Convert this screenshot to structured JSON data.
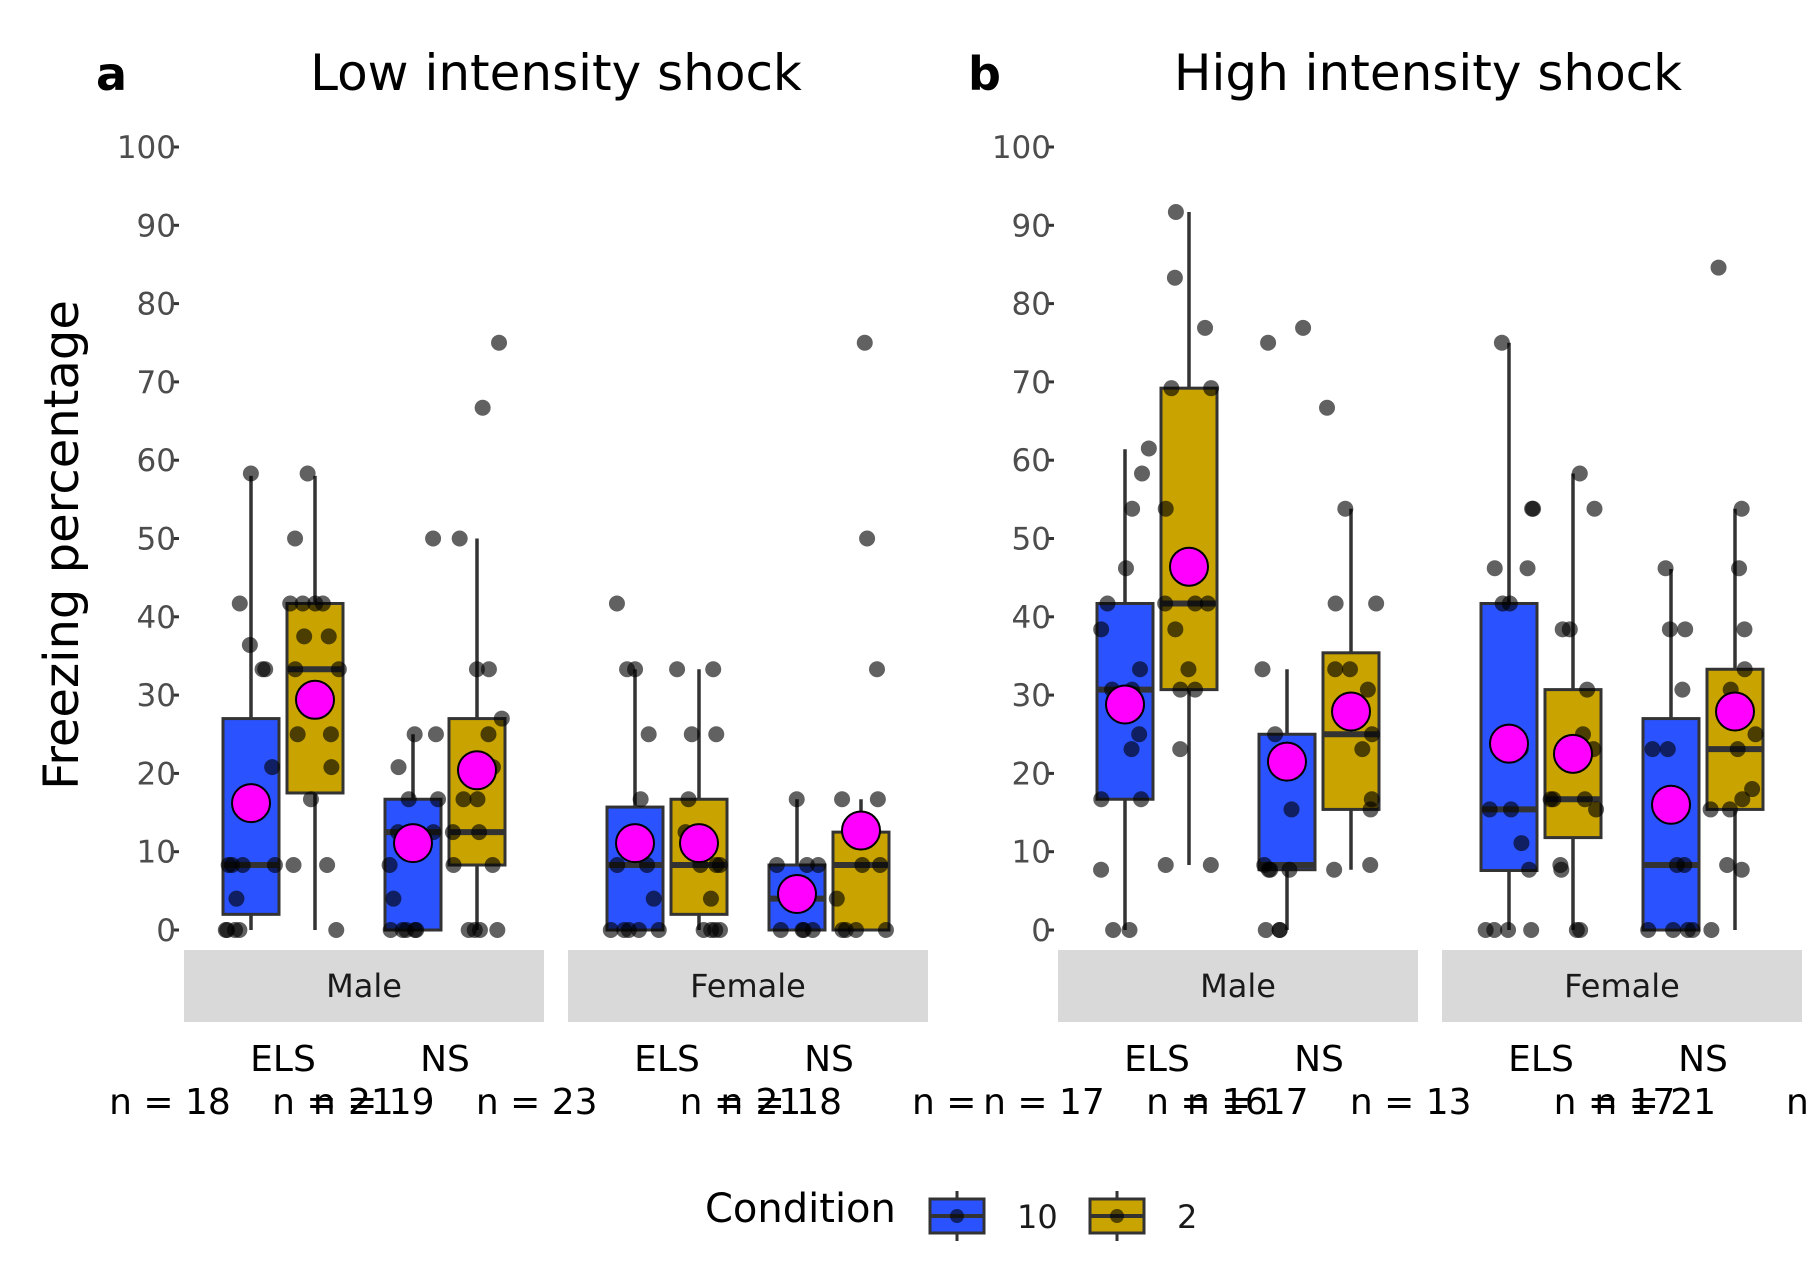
{
  "chart_data": [
    {
      "type": "box",
      "panel_letter": "a",
      "title": "Low intensity shock",
      "ylabel": "Freezing percentage",
      "ylim": [
        0,
        100
      ],
      "yticks": [
        0,
        10,
        20,
        30,
        40,
        50,
        60,
        70,
        80,
        90,
        100
      ],
      "facets": [
        "Male",
        "Female"
      ],
      "categories": [
        "ELS",
        "NS"
      ],
      "groups": [
        {
          "facet": "Male",
          "category": "ELS",
          "condition": "10",
          "min": 0,
          "q1": 2,
          "median": 8.3,
          "q3": 27,
          "max": 58,
          "mean": 16.2,
          "points": [
            0,
            0,
            0,
            0,
            4,
            8.3,
            8.3,
            8.3,
            8.3,
            20.8,
            33.3,
            33.3,
            36.4,
            41.7,
            58.3
          ]
        },
        {
          "facet": "Male",
          "category": "ELS",
          "condition": "2",
          "min": 0,
          "q1": 17.5,
          "median": 33.3,
          "q3": 41.7,
          "max": 58,
          "mean": 29.4,
          "points": [
            0,
            8.3,
            8.3,
            16.7,
            20.8,
            25,
            25,
            33.3,
            33.3,
            37.5,
            37.5,
            41.7,
            41.7,
            41.7,
            41.7,
            50,
            58.3
          ]
        },
        {
          "facet": "Male",
          "category": "NS",
          "condition": "10",
          "min": 0,
          "q1": 0,
          "median": 12.5,
          "q3": 16.7,
          "max": 25,
          "mean": 11.1,
          "points": [
            0,
            0,
            0,
            0,
            0,
            4,
            8.3,
            12.5,
            12.5,
            16.7,
            16.7,
            20.8,
            25,
            25,
            50
          ]
        },
        {
          "facet": "Male",
          "category": "NS",
          "condition": "2",
          "min": 0,
          "q1": 8.3,
          "median": 12.5,
          "q3": 27,
          "max": 50,
          "mean": 20.4,
          "points": [
            0,
            0,
            0,
            0,
            8.3,
            8.3,
            12.5,
            12.5,
            16.7,
            16.7,
            20.8,
            25,
            27,
            33.3,
            33.3,
            50,
            66.7,
            75
          ]
        },
        {
          "facet": "Female",
          "category": "ELS",
          "condition": "10",
          "min": 0,
          "q1": 0,
          "median": 8.3,
          "q3": 15.7,
          "max": 33.3,
          "mean": 11.1,
          "points": [
            0,
            0,
            0,
            0,
            0,
            4,
            8.3,
            8.3,
            16.7,
            25,
            33.3,
            33.3,
            41.7
          ]
        },
        {
          "facet": "Female",
          "category": "ELS",
          "condition": "2",
          "min": 0,
          "q1": 2,
          "median": 8.3,
          "q3": 16.7,
          "max": 33.3,
          "mean": 11.1,
          "points": [
            0,
            0,
            0,
            0,
            4,
            8.3,
            8.3,
            8.3,
            12.5,
            16.7,
            25,
            25,
            33.3,
            33.3
          ]
        },
        {
          "facet": "Female",
          "category": "NS",
          "condition": "10",
          "min": 0,
          "q1": 0,
          "median": 4,
          "q3": 8.3,
          "max": 16.7,
          "mean": 4.6,
          "points": [
            0,
            0,
            0,
            0,
            4,
            8.3,
            8.3,
            8.3,
            16.7
          ]
        },
        {
          "facet": "Female",
          "category": "NS",
          "condition": "2",
          "min": 0,
          "q1": 0,
          "median": 8.3,
          "q3": 12.5,
          "max": 16.7,
          "mean": 12.7,
          "points": [
            0,
            0,
            0,
            0,
            4,
            8.3,
            8.3,
            12.5,
            16.7,
            16.7,
            33.3,
            50,
            75
          ]
        }
      ],
      "n_labels": [
        {
          "text": "n = 18",
          "xunit": 0.0
        },
        {
          "text": "n = 21",
          "xunit": 1.0
        },
        {
          "text": "n = 19",
          "xunit": 1.25
        },
        {
          "text": "n = 23",
          "xunit": 2.25
        },
        {
          "text": "n = 21",
          "xunit": 3.5
        },
        {
          "text": "n = 18",
          "xunit": 3.75
        },
        {
          "text": "n =",
          "xunit": 4.75
        }
      ]
    },
    {
      "type": "box",
      "panel_letter": "b",
      "title": "High intensity shock",
      "ylim": [
        0,
        100
      ],
      "yticks": [
        0,
        10,
        20,
        30,
        40,
        50,
        60,
        70,
        80,
        90,
        100
      ],
      "facets": [
        "Male",
        "Female"
      ],
      "categories": [
        "ELS",
        "NS"
      ],
      "groups": [
        {
          "facet": "Male",
          "category": "ELS",
          "condition": "10",
          "min": 0,
          "q1": 16.7,
          "median": 30.7,
          "q3": 41.7,
          "max": 61.4,
          "mean": 28.8,
          "points": [
            0,
            0,
            7.7,
            16.7,
            16.7,
            23.1,
            25,
            30.7,
            30.7,
            33.3,
            38.4,
            41.7,
            46.2,
            53.8,
            58.3,
            61.5
          ]
        },
        {
          "facet": "Male",
          "category": "ELS",
          "condition": "2",
          "min": 8.3,
          "q1": 30.7,
          "median": 41.7,
          "q3": 69.2,
          "max": 91.7,
          "mean": 46.4,
          "points": [
            8.3,
            8.3,
            23.1,
            30.7,
            30.7,
            33.3,
            38.4,
            41.7,
            41.7,
            41.7,
            53.8,
            69.2,
            69.2,
            76.9,
            83.3,
            91.7
          ]
        },
        {
          "facet": "Male",
          "category": "NS",
          "condition": "10",
          "min": 0,
          "q1": 7.7,
          "median": 8.3,
          "q3": 25,
          "max": 33.3,
          "mean": 21.5,
          "points": [
            0,
            0,
            0,
            7.7,
            7.7,
            7.7,
            8.3,
            15.4,
            25,
            33.3,
            75,
            76.9
          ]
        },
        {
          "facet": "Male",
          "category": "NS",
          "condition": "2",
          "min": 7.7,
          "q1": 15.4,
          "median": 25,
          "q3": 35.4,
          "max": 53.8,
          "mean": 27.9,
          "points": [
            7.7,
            8.3,
            15.4,
            16.7,
            23.1,
            25,
            30.7,
            33.3,
            33.3,
            41.7,
            41.7,
            53.8,
            66.7
          ]
        },
        {
          "facet": "Female",
          "category": "ELS",
          "condition": "10",
          "min": 0,
          "q1": 7.6,
          "median": 15.4,
          "q3": 41.7,
          "max": 75,
          "mean": 23.8,
          "points": [
            0,
            0,
            0,
            0,
            7.7,
            11.1,
            15.4,
            15.4,
            23.1,
            41.7,
            41.7,
            46.2,
            46.2,
            53.8,
            53.8,
            75
          ]
        },
        {
          "facet": "Female",
          "category": "ELS",
          "condition": "2",
          "min": 0,
          "q1": 11.8,
          "median": 16.7,
          "q3": 30.7,
          "max": 58.3,
          "mean": 22.5,
          "points": [
            0,
            0,
            7.7,
            8.3,
            15.4,
            16.7,
            16.7,
            16.7,
            23.1,
            25,
            30.7,
            38.4,
            38.4,
            53.8,
            58.3
          ]
        },
        {
          "facet": "Female",
          "category": "NS",
          "condition": "10",
          "min": 0,
          "q1": 0,
          "median": 8.3,
          "q3": 27,
          "max": 46.1,
          "mean": 16.0,
          "points": [
            0,
            0,
            0,
            0,
            8.3,
            8.3,
            15.4,
            23.1,
            23.1,
            30.7,
            38.4,
            38.4,
            46.2
          ]
        },
        {
          "facet": "Female",
          "category": "NS",
          "condition": "2",
          "min": 0,
          "q1": 15.4,
          "median": 23.1,
          "q3": 33.3,
          "max": 53.8,
          "mean": 27.9,
          "points": [
            0,
            7.7,
            8.3,
            15.4,
            15.4,
            16.7,
            18,
            23.1,
            25,
            30.7,
            33.3,
            38.4,
            46.2,
            53.8,
            84.6
          ]
        }
      ],
      "n_labels": [
        {
          "text": "n = 17",
          "xunit": 0.0
        },
        {
          "text": "n = 16",
          "xunit": 1.0
        },
        {
          "text": "n = 17",
          "xunit": 1.25
        },
        {
          "text": "n = 13",
          "xunit": 2.25
        },
        {
          "text": "n = 17",
          "xunit": 3.5
        },
        {
          "text": "n = 21",
          "xunit": 3.75
        },
        {
          "text": "n =",
          "xunit": 4.75
        }
      ]
    }
  ],
  "legend": {
    "title": "Condition",
    "position": "bottom",
    "entries": [
      {
        "label": "10",
        "color": "#2a52ff"
      },
      {
        "label": "2",
        "color": "#c9a400"
      }
    ]
  },
  "colors": {
    "mean_point": "#ff00ff",
    "jitter_point": "#000000",
    "strip_bg": "#d9d9d9",
    "box_outline": "#333333"
  }
}
